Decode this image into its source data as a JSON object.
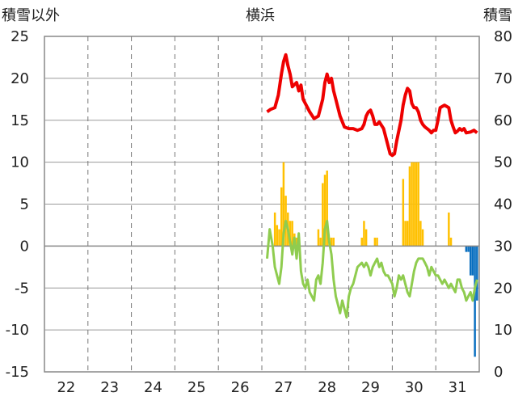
{
  "header": {
    "left_label": "積雪以外",
    "title": "横浜",
    "right_label": "積雪"
  },
  "chart_data": {
    "type": "line",
    "title": "横浜",
    "left_axis": {
      "label": "積雪以外",
      "ylim": [
        -15,
        25
      ],
      "ticks": [
        25,
        20,
        15,
        10,
        5,
        0,
        -5,
        -10,
        -15
      ]
    },
    "right_axis": {
      "label": "積雪",
      "ylim": [
        0,
        80
      ],
      "ticks": [
        80,
        70,
        60,
        50,
        40,
        30,
        20,
        10,
        0
      ]
    },
    "x_axis": {
      "xlim": [
        21.5,
        31.5
      ],
      "ticks": [
        22,
        23,
        24,
        25,
        26,
        27,
        28,
        29,
        30,
        31
      ]
    },
    "grid": true,
    "colors": {
      "red": "#ee0000",
      "green": "#8fcc4f",
      "orange": "#ffc000",
      "blue": "#0a6fc0"
    },
    "series": [
      {
        "color_key": "red",
        "kind": "line",
        "axis": "left",
        "x": [
          26.62,
          26.7,
          26.8,
          26.88,
          26.95,
          27.0,
          27.05,
          27.1,
          27.15,
          27.2,
          27.3,
          27.35,
          27.4,
          27.45,
          27.5,
          27.55,
          27.6,
          27.7,
          27.8,
          27.85,
          27.9,
          27.95,
          28.0,
          28.05,
          28.1,
          28.15,
          28.2,
          28.3,
          28.4,
          28.5,
          28.6,
          28.7,
          28.8,
          28.85,
          28.9,
          28.95,
          29.0,
          29.05,
          29.1,
          29.15,
          29.2,
          29.3,
          29.4,
          29.45,
          29.5,
          29.55,
          29.6,
          29.7,
          29.75,
          29.8,
          29.85,
          29.9,
          29.95,
          30.0,
          30.05,
          30.1,
          30.15,
          30.2,
          30.25,
          30.3,
          30.35,
          30.4,
          30.45,
          30.5,
          30.55,
          30.6,
          30.7,
          30.8,
          30.85,
          30.9,
          30.95,
          31.0,
          31.05,
          31.1,
          31.15,
          31.2,
          31.3,
          31.38,
          31.45
        ],
        "y": [
          16.0,
          16.3,
          16.5,
          18.0,
          20.5,
          22.0,
          22.8,
          21.5,
          20.5,
          19.0,
          19.5,
          18.5,
          19.2,
          17.5,
          17.0,
          16.5,
          16.0,
          15.2,
          15.5,
          16.5,
          17.5,
          19.5,
          20.5,
          19.5,
          20.0,
          18.5,
          17.5,
          15.5,
          14.2,
          14.0,
          14.0,
          13.8,
          14.0,
          14.5,
          15.5,
          16.0,
          16.2,
          15.5,
          14.5,
          14.5,
          14.8,
          14.0,
          12.0,
          11.0,
          10.8,
          11.0,
          12.5,
          15.0,
          16.8,
          18.0,
          18.8,
          18.5,
          17.0,
          16.5,
          16.5,
          16.0,
          15.0,
          14.5,
          14.2,
          14.0,
          13.8,
          13.5,
          13.8,
          13.8,
          15.0,
          16.5,
          16.8,
          16.5,
          15.0,
          14.2,
          13.5,
          13.7,
          14.0,
          13.8,
          14.0,
          13.5,
          13.6,
          13.8,
          13.5
        ]
      },
      {
        "color_key": "green",
        "kind": "line",
        "axis": "left",
        "x": [
          26.62,
          26.68,
          26.75,
          26.8,
          26.85,
          26.9,
          26.95,
          27.0,
          27.05,
          27.1,
          27.15,
          27.2,
          27.25,
          27.3,
          27.35,
          27.4,
          27.45,
          27.5,
          27.55,
          27.6,
          27.65,
          27.7,
          27.75,
          27.8,
          27.85,
          27.9,
          27.95,
          28.0,
          28.05,
          28.1,
          28.15,
          28.2,
          28.25,
          28.3,
          28.35,
          28.4,
          28.45,
          28.5,
          28.55,
          28.6,
          28.65,
          28.7,
          28.8,
          28.85,
          28.9,
          28.95,
          29.0,
          29.05,
          29.1,
          29.15,
          29.2,
          29.25,
          29.3,
          29.35,
          29.4,
          29.45,
          29.5,
          29.55,
          29.6,
          29.65,
          29.7,
          29.75,
          29.8,
          29.85,
          29.9,
          29.95,
          30.0,
          30.05,
          30.1,
          30.15,
          30.2,
          30.25,
          30.3,
          30.35,
          30.4,
          30.45,
          30.5,
          30.55,
          30.6,
          30.65,
          30.7,
          30.75,
          30.8,
          30.85,
          30.9,
          30.95,
          31.0,
          31.05,
          31.1,
          31.15,
          31.2,
          31.25,
          31.3,
          31.35,
          31.4,
          31.45
        ],
        "y": [
          -1.5,
          2.0,
          0.0,
          -2.5,
          -3.5,
          -4.5,
          -2.5,
          1.5,
          3.0,
          2.0,
          0.5,
          -1.0,
          1.0,
          -1.5,
          1.5,
          -3.0,
          -4.5,
          -5.0,
          -4.0,
          -5.5,
          -6.0,
          -6.5,
          -4.0,
          -3.5,
          -4.5,
          -2.0,
          2.0,
          3.0,
          0.5,
          -1.0,
          -4.0,
          -6.0,
          -7.0,
          -8.0,
          -6.5,
          -7.5,
          -8.5,
          -6.0,
          -5.0,
          -4.5,
          -3.5,
          -2.5,
          -2.0,
          -2.5,
          -2.0,
          -2.5,
          -3.5,
          -2.5,
          -2.0,
          -1.5,
          -2.5,
          -2.0,
          -3.0,
          -3.5,
          -3.5,
          -4.0,
          -4.5,
          -6.0,
          -5.0,
          -3.5,
          -4.0,
          -3.5,
          -4.5,
          -5.5,
          -6.0,
          -4.5,
          -3.0,
          -2.0,
          -1.5,
          -1.5,
          -1.5,
          -2.0,
          -2.5,
          -3.5,
          -2.5,
          -3.0,
          -3.5,
          -3.5,
          -4.0,
          -4.5,
          -4.0,
          -4.5,
          -5.0,
          -4.5,
          -5.0,
          -5.5,
          -4.0,
          -4.0,
          -5.0,
          -5.5,
          -6.5,
          -6.0,
          -5.5,
          -6.5,
          -5.0,
          -4.0
        ]
      },
      {
        "color_key": "orange",
        "kind": "bar",
        "axis": "left",
        "x": [
          26.8,
          26.85,
          26.9,
          26.95,
          27.0,
          27.05,
          27.1,
          27.15,
          27.2,
          27.25,
          27.3,
          27.35,
          27.8,
          27.85,
          27.9,
          27.95,
          28.0,
          28.05,
          28.1,
          28.15,
          28.8,
          28.85,
          28.9,
          29.1,
          29.15,
          29.75,
          29.8,
          29.85,
          29.9,
          29.95,
          30.0,
          30.05,
          30.1,
          30.15,
          30.2,
          30.8,
          30.85
        ],
        "y": [
          4.0,
          2.5,
          2.0,
          7.0,
          10.0,
          6.0,
          4.0,
          3.0,
          3.0,
          1.5,
          1.0,
          1.0,
          2.0,
          1.0,
          7.5,
          8.5,
          9.0,
          1.0,
          1.0,
          1.0,
          1.0,
          3.0,
          2.0,
          1.0,
          1.0,
          8.0,
          3.0,
          3.0,
          9.5,
          10.0,
          10.0,
          10.0,
          10.0,
          3.0,
          2.0,
          4.0,
          1.0
        ]
      },
      {
        "color_key": "blue",
        "kind": "bar",
        "axis": "left",
        "x": [
          31.2,
          31.25,
          31.3,
          31.35,
          31.4,
          31.45
        ],
        "y": [
          -0.7,
          -0.7,
          -3.5,
          -3.5,
          -13.2,
          -6.5
        ]
      }
    ]
  }
}
